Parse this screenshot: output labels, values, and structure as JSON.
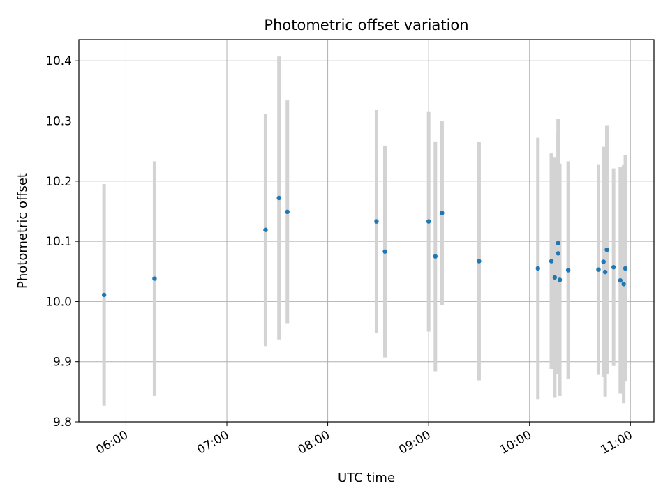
{
  "chart_data": {
    "type": "scatter",
    "title": "Photometric offset variation",
    "xlabel": "UTC time",
    "ylabel": "Photometric offset",
    "xlim": [
      "05:32",
      "11:14"
    ],
    "ylim": [
      9.8,
      10.435
    ],
    "xticks": [
      "06:00",
      "07:00",
      "08:00",
      "09:00",
      "10:00",
      "11:00"
    ],
    "yticks": [
      "9.8",
      "9.9",
      "10.0",
      "10.1",
      "10.2",
      "10.3",
      "10.4"
    ],
    "grid": true,
    "errorbar_color": "#d3d3d3",
    "point_color": "#1f77b4",
    "points": [
      {
        "x": "05:47",
        "y": 10.011,
        "err": 0.184
      },
      {
        "x": "06:17",
        "y": 10.038,
        "err": 0.195
      },
      {
        "x": "07:23",
        "y": 10.119,
        "err": 0.193
      },
      {
        "x": "07:31",
        "y": 10.172,
        "err": 0.235
      },
      {
        "x": "07:36",
        "y": 10.149,
        "err": 0.185
      },
      {
        "x": "08:29",
        "y": 10.133,
        "err": 0.185
      },
      {
        "x": "08:34",
        "y": 10.083,
        "err": 0.176
      },
      {
        "x": "09:00",
        "y": 10.133,
        "err": 0.183
      },
      {
        "x": "09:04",
        "y": 10.075,
        "err": 0.191
      },
      {
        "x": "09:08",
        "y": 10.147,
        "err": 0.153
      },
      {
        "x": "09:30",
        "y": 10.067,
        "err": 0.198
      },
      {
        "x": "10:05",
        "y": 10.055,
        "err": 0.217
      },
      {
        "x": "10:13",
        "y": 10.067,
        "err": 0.179
      },
      {
        "x": "10:15",
        "y": 10.04,
        "err": 0.2
      },
      {
        "x": "10:17",
        "y": 10.097,
        "err": 0.206
      },
      {
        "x": "10:17",
        "y": 10.08,
        "err": 0.2
      },
      {
        "x": "10:18",
        "y": 10.036,
        "err": 0.193
      },
      {
        "x": "10:23",
        "y": 10.052,
        "err": 0.181
      },
      {
        "x": "10:41",
        "y": 10.053,
        "err": 0.175
      },
      {
        "x": "10:44",
        "y": 10.066,
        "err": 0.191
      },
      {
        "x": "10:45",
        "y": 10.049,
        "err": 0.207
      },
      {
        "x": "10:46",
        "y": 10.086,
        "err": 0.207
      },
      {
        "x": "10:50",
        "y": 10.057,
        "err": 0.164
      },
      {
        "x": "10:54",
        "y": 10.035,
        "err": 0.188
      },
      {
        "x": "10:56",
        "y": 10.029,
        "err": 0.198
      },
      {
        "x": "10:57",
        "y": 10.055,
        "err": 0.188
      }
    ]
  }
}
